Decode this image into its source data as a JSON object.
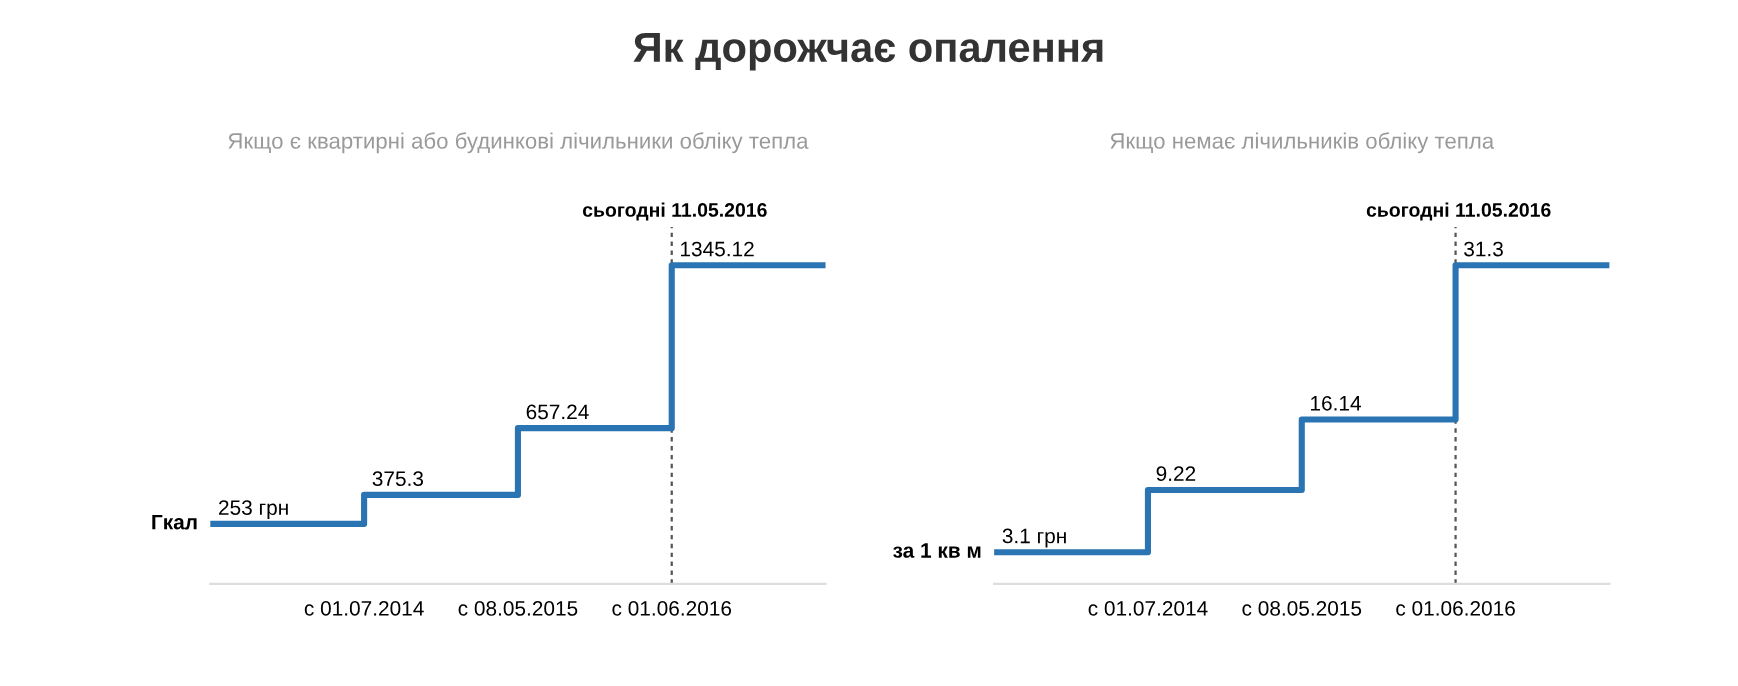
{
  "chart_data": [
    {
      "type": "step",
      "title": "Як дорожчає опалення",
      "subtitle": "Якщо є квартирні або будинкові лічильники обліку тепла",
      "ylabel": "Гкал",
      "categories": [
        null,
        "с 01.07.2014",
        "с 08.05.2015",
        "с 01.06.2016",
        null
      ],
      "values": [
        253,
        375.3,
        657.24,
        1345.12,
        1345.12
      ],
      "value_labels": [
        "253 грн",
        "375.3",
        "657.24",
        "1345.12",
        null
      ],
      "color": "#2a74b4",
      "ref_lines": [
        {
          "axis": "x",
          "value": "с 01.06.2016",
          "label": "сьогодні 11.05.2016",
          "color": "#555555",
          "line_style": "dashed"
        }
      ],
      "grid": false,
      "legend": false
    },
    {
      "type": "step",
      "subtitle": "Якщо немає лічильників обліку тепла",
      "ylabel": "за 1 кв м",
      "categories": [
        null,
        "с 01.07.2014",
        "с 08.05.2015",
        "с 01.06.2016",
        null
      ],
      "values": [
        3.1,
        9.22,
        16.14,
        31.3,
        31.3
      ],
      "value_labels": [
        "3.1 грн",
        "9.22",
        "16.14",
        "31.3",
        null
      ],
      "color": "#2a74b4",
      "ref_lines": [
        {
          "axis": "x",
          "value": "с 01.06.2016",
          "label": "сьогодні 11.05.2016",
          "color": "#555555",
          "line_style": "dashed"
        }
      ],
      "grid": false,
      "legend": false
    }
  ]
}
